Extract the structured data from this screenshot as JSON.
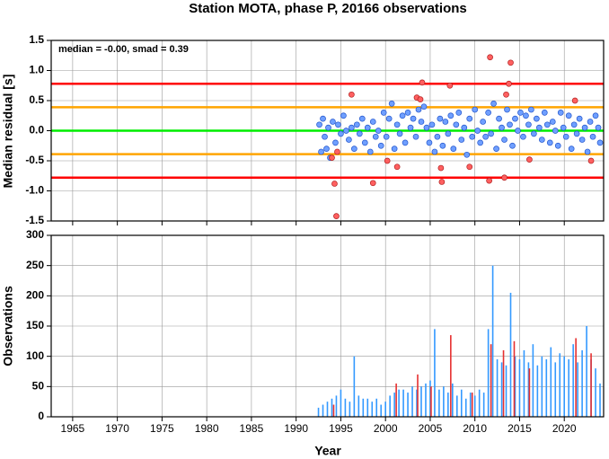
{
  "chart_data": [
    {
      "type": "scatter",
      "title": "Station MOTA, phase P, 20166 observations",
      "annotation": "median = -0.00, smad = 0.39",
      "y_label": "Median residual [s]",
      "xlim": [
        1962.6,
        2024.4
      ],
      "xticks": [
        1965,
        1970,
        1975,
        1980,
        1985,
        1990,
        1995,
        2000,
        2005,
        2010,
        2015,
        2020
      ],
      "ylim": [
        -1.5,
        1.5
      ],
      "yticks": [
        -1.5,
        {
          "value": -1,
          "label": "-1.0"
        },
        -0.5,
        {
          "value": 0,
          "label": "0.0"
        },
        0.5,
        {
          "value": 1,
          "label": "1.0"
        },
        1.5
      ],
      "grid": true,
      "hlines": [
        {
          "value": 0.78,
          "color": "#ff0000"
        },
        {
          "value": 0.39,
          "color": "#ffa500"
        },
        {
          "value": 0,
          "color": "#00ee00"
        },
        {
          "value": -0.39,
          "color": "#ffa500"
        },
        {
          "value": -0.78,
          "color": "#ff0000"
        }
      ],
      "series": [
        {
          "color": "#6f9fff",
          "x": [
            1992.6,
            1992.8,
            1993.0,
            1993.2,
            1993.4,
            1993.6,
            1993.8,
            1994.1,
            1994.4,
            1994.7,
            1995.0,
            1995.3,
            1995.6,
            1995.9,
            1996.2,
            1996.5,
            1996.8,
            1997.1,
            1997.4,
            1997.7,
            1998.0,
            1998.3,
            1998.6,
            1998.9,
            1999.2,
            1999.5,
            1999.8,
            2000.1,
            2000.4,
            2000.7,
            2001.0,
            2001.3,
            2001.6,
            2001.9,
            2002.2,
            2002.5,
            2002.8,
            2003.1,
            2003.4,
            2003.7,
            2004.0,
            2004.3,
            2004.6,
            2004.9,
            2005.2,
            2005.5,
            2005.8,
            2006.1,
            2006.4,
            2006.7,
            2007.0,
            2007.3,
            2007.6,
            2007.9,
            2008.2,
            2008.5,
            2008.8,
            2009.1,
            2009.4,
            2009.7,
            2010.0,
            2010.3,
            2010.6,
            2010.9,
            2011.2,
            2011.5,
            2011.8,
            2012.1,
            2012.4,
            2012.7,
            2013.0,
            2013.3,
            2013.6,
            2013.9,
            2014.2,
            2014.5,
            2014.8,
            2015.1,
            2015.4,
            2015.7,
            2016.0,
            2016.3,
            2016.6,
            2016.9,
            2017.2,
            2017.5,
            2017.8,
            2018.1,
            2018.4,
            2018.7,
            2019.0,
            2019.3,
            2019.6,
            2019.9,
            2020.2,
            2020.5,
            2020.8,
            2021.1,
            2021.4,
            2021.7,
            2022.0,
            2022.3,
            2022.6,
            2022.9,
            2023.2,
            2023.5,
            2023.8,
            2024.0
          ],
          "values": [
            0.1,
            -0.35,
            0.2,
            -0.1,
            -0.3,
            0.05,
            -0.45,
            0.15,
            -0.2,
            0.1,
            -0.05,
            0.25,
            0.0,
            -0.15,
            0.05,
            -0.3,
            0.1,
            -0.05,
            0.2,
            -0.2,
            0.05,
            -0.35,
            0.15,
            -0.1,
            0.0,
            -0.25,
            0.3,
            -0.1,
            0.2,
            0.45,
            -0.3,
            0.1,
            -0.05,
            0.25,
            -0.2,
            0.3,
            0.05,
            0.2,
            -0.1,
            0.35,
            0.15,
            0.4,
            0.05,
            -0.2,
            0.1,
            -0.35,
            -0.1,
            0.2,
            -0.25,
            0.15,
            -0.05,
            0.25,
            -0.3,
            0.1,
            0.3,
            -0.15,
            0.05,
            -0.4,
            0.2,
            -0.1,
            0.35,
            0.0,
            -0.2,
            0.15,
            -0.1,
            0.3,
            -0.05,
            0.45,
            -0.3,
            0.2,
            0.05,
            -0.15,
            0.35,
            0.1,
            -0.25,
            0.2,
            0.0,
            0.3,
            -0.1,
            0.25,
            0.1,
            0.35,
            -0.05,
            0.2,
            0.05,
            -0.15,
            0.3,
            0.1,
            -0.2,
            0.15,
            0.0,
            -0.25,
            0.3,
            0.05,
            -0.1,
            0.25,
            -0.3,
            0.1,
            -0.05,
            0.2,
            -0.15,
            0.05,
            -0.35,
            0.15,
            -0.1,
            0.25,
            0.05,
            -0.2
          ]
        },
        {
          "color": "#ff6060",
          "x": [
            1994.0,
            1994.3,
            1994.5,
            1994.6,
            1996.2,
            1998.6,
            2000.2,
            2001.3,
            2003.5,
            2003.9,
            2004.1,
            2006.2,
            2006.3,
            2007.2,
            2009.4,
            2011.6,
            2011.7,
            2013.3,
            2013.5,
            2013.8,
            2014.0,
            2016.1,
            2021.2,
            2023.0
          ],
          "values": [
            -0.45,
            -0.88,
            -1.42,
            -0.35,
            0.6,
            -0.87,
            -0.5,
            -0.6,
            0.55,
            0.52,
            0.8,
            -0.62,
            -0.85,
            0.75,
            -0.6,
            -0.83,
            1.22,
            -0.78,
            0.6,
            0.78,
            1.13,
            -0.48,
            0.5,
            -0.5
          ]
        }
      ]
    },
    {
      "type": "bar",
      "x_label": "Year",
      "y_label": "Observations",
      "xlim": [
        1962.6,
        2024.4
      ],
      "xticks": [
        1965,
        1970,
        1975,
        1980,
        1985,
        1990,
        1995,
        2000,
        2005,
        2010,
        2015,
        2020
      ],
      "ylim": [
        0,
        300
      ],
      "yticks": [
        0,
        50,
        100,
        150,
        200,
        250,
        300
      ],
      "grid": true,
      "series": [
        {
          "color": "#3399ff",
          "x": [
            1992.5,
            1993.0,
            1993.5,
            1994.0,
            1994.5,
            1995.0,
            1995.5,
            1996.0,
            1996.5,
            1997.0,
            1997.5,
            1998.0,
            1998.5,
            1999.0,
            1999.5,
            2000.0,
            2000.5,
            2001.0,
            2001.5,
            2002.0,
            2002.5,
            2003.0,
            2003.5,
            2004.0,
            2004.5,
            2005.0,
            2005.5,
            2006.0,
            2006.5,
            2007.0,
            2007.5,
            2008.0,
            2008.5,
            2009.0,
            2009.5,
            2010.0,
            2010.5,
            2011.0,
            2011.5,
            2012.0,
            2012.5,
            2013.0,
            2013.5,
            2014.0,
            2014.5,
            2015.0,
            2015.5,
            2016.0,
            2016.5,
            2017.0,
            2017.5,
            2018.0,
            2018.5,
            2019.0,
            2019.5,
            2020.0,
            2020.5,
            2021.0,
            2021.5,
            2022.0,
            2022.5,
            2023.0,
            2023.5,
            2024.0
          ],
          "values": [
            15,
            20,
            25,
            30,
            35,
            45,
            30,
            25,
            100,
            35,
            30,
            30,
            25,
            30,
            20,
            25,
            35,
            40,
            45,
            45,
            40,
            50,
            45,
            50,
            55,
            60,
            145,
            45,
            50,
            40,
            55,
            35,
            45,
            30,
            40,
            35,
            45,
            40,
            145,
            250,
            95,
            90,
            85,
            205,
            100,
            95,
            110,
            90,
            120,
            85,
            100,
            95,
            115,
            90,
            105,
            100,
            95,
            120,
            90,
            110,
            150,
            95,
            80,
            55
          ]
        },
        {
          "color": "#e63030",
          "x": [
            1994.2,
            2001.2,
            2003.6,
            2005.1,
            2007.3,
            2009.7,
            2011.8,
            2013.2,
            2014.4,
            2016.1,
            2021.3,
            2023.0
          ],
          "values": [
            20,
            55,
            70,
            50,
            135,
            40,
            120,
            110,
            125,
            80,
            130,
            105
          ]
        }
      ]
    }
  ]
}
